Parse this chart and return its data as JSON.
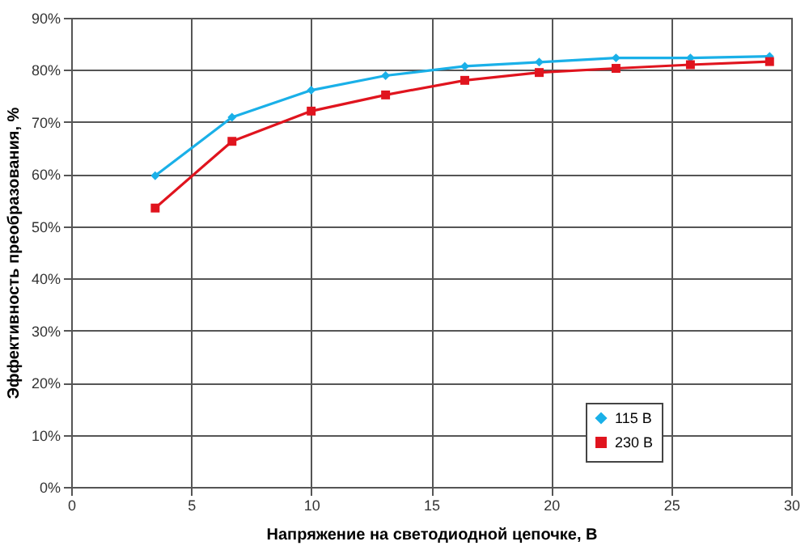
{
  "chart_data": {
    "type": "line",
    "xlabel": "Напряжение на светодиодной цепочке, В",
    "ylabel": "Эффективность преобразования, %",
    "x": [
      3.5,
      6.7,
      10.0,
      13.1,
      16.4,
      19.5,
      22.7,
      25.8,
      29.1
    ],
    "series": [
      {
        "name": "115 В",
        "color": "#1ab0e8",
        "marker": "diamond",
        "values": [
          59.7,
          70.9,
          76.1,
          78.9,
          80.7,
          81.5,
          82.3,
          82.3,
          82.6
        ]
      },
      {
        "name": "230 В",
        "color": "#e0141e",
        "marker": "square",
        "values": [
          53.5,
          66.3,
          72.1,
          75.2,
          78.0,
          79.5,
          80.3,
          81.0,
          81.6
        ]
      }
    ],
    "xlim": [
      0,
      30
    ],
    "xticks": [
      0,
      5,
      10,
      15,
      20,
      25,
      30
    ],
    "ylim": [
      0,
      90
    ],
    "yticks": [
      {
        "value": 0,
        "label": "0%"
      },
      {
        "value": 10,
        "label": "10%"
      },
      {
        "value": 20,
        "label": "20%"
      },
      {
        "value": 30,
        "label": "30%"
      },
      {
        "value": 40,
        "label": "40%"
      },
      {
        "value": 50,
        "label": "50%"
      },
      {
        "value": 60,
        "label": "60%"
      },
      {
        "value": 70,
        "label": "70%"
      },
      {
        "value": 80,
        "label": "80%"
      },
      {
        "value": 90,
        "label": "90%"
      }
    ],
    "grid": true,
    "legend": "bottom right",
    "line_style": "solid"
  }
}
